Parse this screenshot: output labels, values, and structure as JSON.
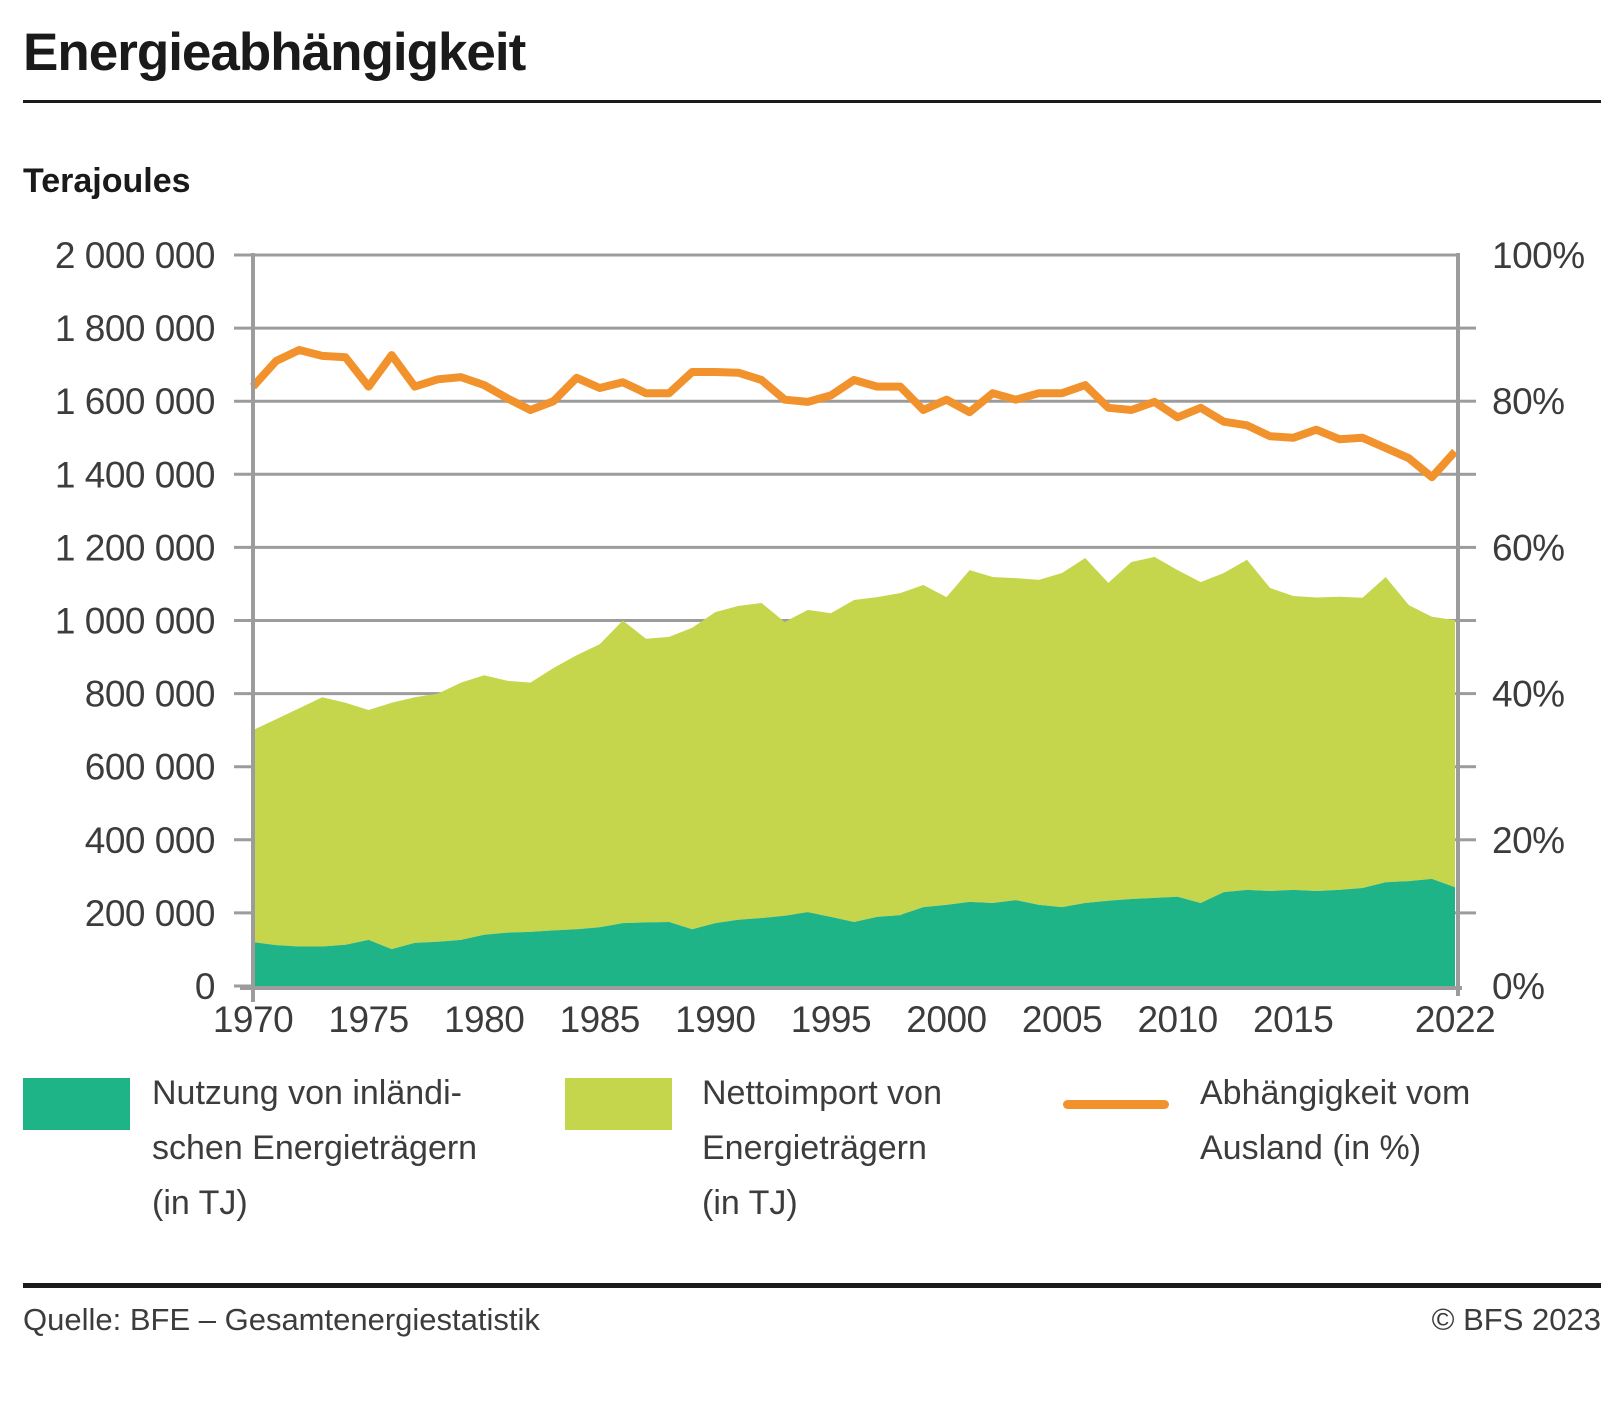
{
  "title": "Energieabhängigkeit",
  "colors": {
    "teal": "#1EB488",
    "green": "#C5D64D",
    "orange": "#F2922C",
    "grid": "#9C9C9C",
    "axis_text": "#3C3C3C",
    "rule": "#1A1A1A"
  },
  "y_axis": {
    "label": "Terajoules",
    "ticks": [
      {
        "value": 2000000,
        "label": "2 000 000"
      },
      {
        "value": 1800000,
        "label": "1 800 000"
      },
      {
        "value": 1600000,
        "label": "1 600 000"
      },
      {
        "value": 1400000,
        "label": "1 400 000"
      },
      {
        "value": 1200000,
        "label": "1 200 000"
      },
      {
        "value": 1000000,
        "label": "1 000 000"
      },
      {
        "value": 800000,
        "label": "800 000"
      },
      {
        "value": 600000,
        "label": "600 000"
      },
      {
        "value": 400000,
        "label": "400 000"
      },
      {
        "value": 200000,
        "label": "200 000"
      },
      {
        "value": 0,
        "label": "0"
      }
    ]
  },
  "y2_axis": {
    "ticks": [
      {
        "value": 100,
        "label": "100%"
      },
      {
        "value": 80,
        "label": "80%"
      },
      {
        "value": 60,
        "label": "60%"
      },
      {
        "value": 40,
        "label": "40%"
      },
      {
        "value": 20,
        "label": "20%"
      },
      {
        "value": 0,
        "label": "0%"
      }
    ],
    "minor_tick_step": 10
  },
  "x_axis": {
    "ticks": [
      {
        "year": 1970,
        "label": "1970"
      },
      {
        "year": 1975,
        "label": "1975"
      },
      {
        "year": 1980,
        "label": "1980"
      },
      {
        "year": 1985,
        "label": "1985"
      },
      {
        "year": 1990,
        "label": "1990"
      },
      {
        "year": 1995,
        "label": "1995"
      },
      {
        "year": 2000,
        "label": "2000"
      },
      {
        "year": 2005,
        "label": "2005"
      },
      {
        "year": 2010,
        "label": "2010"
      },
      {
        "year": 2015,
        "label": "2015"
      },
      {
        "year": 2022,
        "label": "2022"
      }
    ]
  },
  "legend": {
    "items": [
      {
        "type": "area",
        "color": "#1EB488",
        "lines": [
          "Nutzung von inländi-",
          "schen Energieträgern",
          "(in TJ)"
        ]
      },
      {
        "type": "area",
        "color": "#C5D64D",
        "lines": [
          "Nettoimport von",
          "Energieträgern",
          "(in TJ)"
        ]
      },
      {
        "type": "line",
        "color": "#F2922C",
        "lines": [
          "Abhängigkeit vom",
          "Ausland (in %)"
        ]
      }
    ]
  },
  "footer": {
    "source": "Quelle: BFE – Gesamtenergiestatistik",
    "copyright": "© BFS 2023"
  },
  "chart_data": {
    "type": "area",
    "subtype": "stacked-area-with-percent-line",
    "title": "Energieabhängigkeit",
    "ylabel": "Terajoules",
    "ylim": [
      0,
      2000000
    ],
    "y2lim": [
      0,
      100
    ],
    "grid": true,
    "legend_position": "bottom",
    "x": [
      1970,
      1971,
      1972,
      1973,
      1974,
      1975,
      1976,
      1977,
      1978,
      1979,
      1980,
      1981,
      1982,
      1983,
      1984,
      1985,
      1986,
      1987,
      1988,
      1989,
      1990,
      1991,
      1992,
      1993,
      1994,
      1995,
      1996,
      1997,
      1998,
      1999,
      2000,
      2001,
      2002,
      2003,
      2004,
      2005,
      2006,
      2007,
      2008,
      2009,
      2010,
      2011,
      2012,
      2013,
      2014,
      2015,
      2016,
      2017,
      2018,
      2019,
      2020,
      2021,
      2022
    ],
    "series": [
      {
        "name": "Nutzung von inländischen Energieträgern (in TJ)",
        "type": "area",
        "stack": true,
        "axis": "left",
        "color": "#1EB488",
        "values": [
          120000,
          112000,
          108000,
          108000,
          113000,
          126000,
          101000,
          118000,
          121000,
          126000,
          140000,
          146000,
          148000,
          152000,
          155000,
          161000,
          172000,
          174000,
          175000,
          155000,
          172000,
          181000,
          186000,
          192000,
          202000,
          189000,
          175000,
          189000,
          194000,
          216000,
          222000,
          230000,
          227000,
          235000,
          222000,
          216000,
          227000,
          233000,
          238000,
          241000,
          244000,
          227000,
          257000,
          263000,
          260000,
          263000,
          260000,
          263000,
          268000,
          284000,
          287000,
          293000,
          270000
        ]
      },
      {
        "name": "Nettoimport von Energieträgern (in TJ)",
        "type": "area",
        "stack": true,
        "axis": "left",
        "color": "#C5D64D",
        "values": [
          580000,
          618000,
          652000,
          682000,
          662000,
          629000,
          674000,
          672000,
          679000,
          704000,
          710000,
          689000,
          682000,
          718000,
          750000,
          774000,
          828000,
          776000,
          780000,
          825000,
          851000,
          859000,
          862000,
          804000,
          827000,
          831000,
          881000,
          875000,
          881000,
          881000,
          842000,
          908000,
          892000,
          881000,
          889000,
          914000,
          944000,
          870000,
          922000,
          933000,
          894000,
          878000,
          873000,
          903000,
          829000,
          804000,
          803000,
          802000,
          794000,
          835000,
          755000,
          717000,
          731000
        ]
      },
      {
        "name": "Abhängigkeit vom Ausland (in %)",
        "type": "line",
        "stack": false,
        "axis": "right",
        "color": "#F2922C",
        "values": [
          82.0,
          85.5,
          87.0,
          86.2,
          86.0,
          82.0,
          86.3,
          82.0,
          83.0,
          83.3,
          82.2,
          80.4,
          78.8,
          80.0,
          83.2,
          81.8,
          82.6,
          81.1,
          81.1,
          84.0,
          84.0,
          83.9,
          82.9,
          80.2,
          79.9,
          80.8,
          82.9,
          82.0,
          82.0,
          78.8,
          80.2,
          78.5,
          81.1,
          80.2,
          81.1,
          81.1,
          82.2,
          79.1,
          78.8,
          79.9,
          77.8,
          79.1,
          77.2,
          76.7,
          75.2,
          75.0,
          76.1,
          74.8,
          75.0,
          73.6,
          72.2,
          69.6,
          73.1
        ]
      }
    ]
  }
}
